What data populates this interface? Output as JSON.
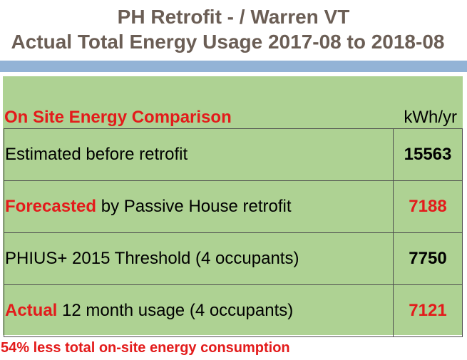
{
  "title_line1": "PH Retrofit - / Warren VT",
  "title_line2": "Actual Total Energy Usage 2017-08 to 2018-08",
  "table": {
    "header_label": "On Site Energy Comparison",
    "header_unit": "kWh/yr",
    "rows": [
      {
        "label_red": "",
        "label_rest": "Estimated before retrofit",
        "value": "15563",
        "value_color": "#000000"
      },
      {
        "label_red": "Forecasted",
        "label_rest": " by Passive House retrofit",
        "value": "7188",
        "value_color": "#e31b1b"
      },
      {
        "label_red": "",
        "label_rest": "PHIUS+ 2015 Threshold (4 occupants)",
        "value": "7750",
        "value_color": "#000000"
      },
      {
        "label_red": "Actual",
        "label_rest": " 12 month usage (4 occupants)",
        "value": "7121",
        "value_color": "#e31b1b"
      }
    ]
  },
  "footer": "54% less total on-site energy consumption",
  "colors": {
    "title": "#6b5e55",
    "accent_red": "#e31b1b",
    "panel_green": "#aed293",
    "rule_blue": "#93b3d6"
  }
}
